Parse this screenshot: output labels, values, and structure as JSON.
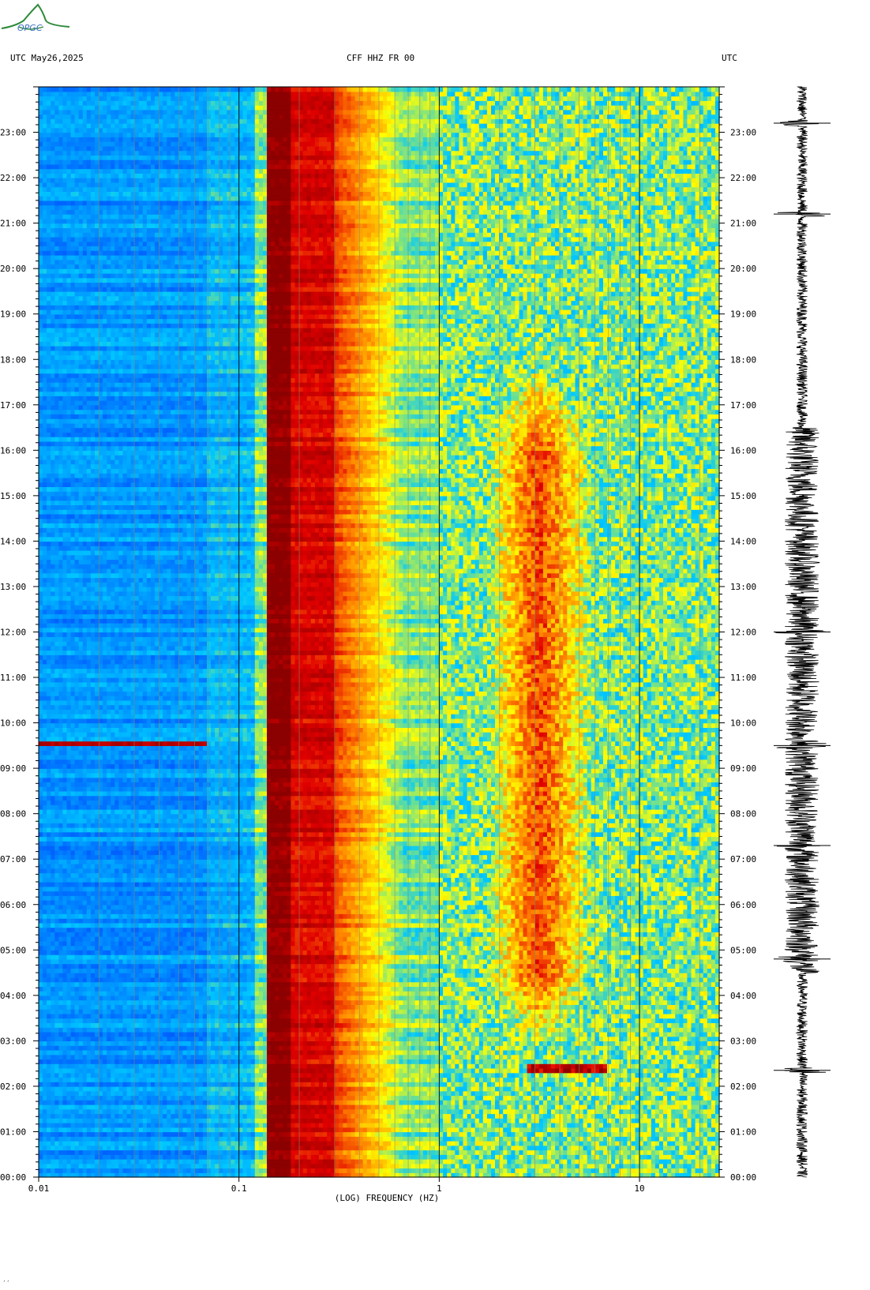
{
  "header": {
    "left": "UTC  May26,2025",
    "center": "CFF HHZ FR 00",
    "right": "UTC"
  },
  "logo": {
    "text": "OPGC"
  },
  "footer_mark": "′′",
  "chart_data": {
    "type": "heatmap",
    "title": "CFF HHZ FR 00",
    "date": "May26,2025",
    "xlabel": "(LOG) FREQUENCY (HZ)",
    "x_scale": "log",
    "xlim": [
      0.01,
      25
    ],
    "x_ticks": [
      {
        "value": 0.01,
        "label": "0.01"
      },
      {
        "value": 0.1,
        "label": "0.1"
      },
      {
        "value": 1,
        "label": "1"
      },
      {
        "value": 10,
        "label": "10"
      }
    ],
    "ylabel": "UTC",
    "ylim_hours": [
      0,
      24
    ],
    "y_ticks": [
      "00:00",
      "01:00",
      "02:00",
      "03:00",
      "04:00",
      "05:00",
      "06:00",
      "07:00",
      "08:00",
      "09:00",
      "10:00",
      "11:00",
      "12:00",
      "13:00",
      "14:00",
      "15:00",
      "16:00",
      "17:00",
      "18:00",
      "19:00",
      "20:00",
      "21:00",
      "22:00",
      "23:00"
    ],
    "colormap": [
      "#0020e0",
      "#0066ff",
      "#00c8ff",
      "#ffff00",
      "#ff8000",
      "#e00000",
      "#8b0000"
    ],
    "features": [
      {
        "desc": "saturated band",
        "f_min": 0.14,
        "f_max": 0.18,
        "level": 1.0
      },
      {
        "desc": "microseism peak",
        "f_min": 0.18,
        "f_max": 0.3,
        "level": 0.85
      },
      {
        "desc": "daytime cultural noise",
        "f_min": 2,
        "f_max": 5,
        "hours": [
          4.5,
          16
        ],
        "level": 0.75
      },
      {
        "desc": "event",
        "hour": 2.4,
        "f_min": 2.8,
        "f_max": 7,
        "level": 0.9
      },
      {
        "desc": "event",
        "hour": 9.55,
        "f_min": 0.01,
        "f_max": 0.07,
        "level": 0.9
      }
    ]
  },
  "seismogram": {
    "events_hours": [
      2.35,
      4.8,
      7.3,
      9.5,
      12.0,
      21.2,
      23.2
    ],
    "day_activity": [
      4.5,
      16.5
    ]
  }
}
